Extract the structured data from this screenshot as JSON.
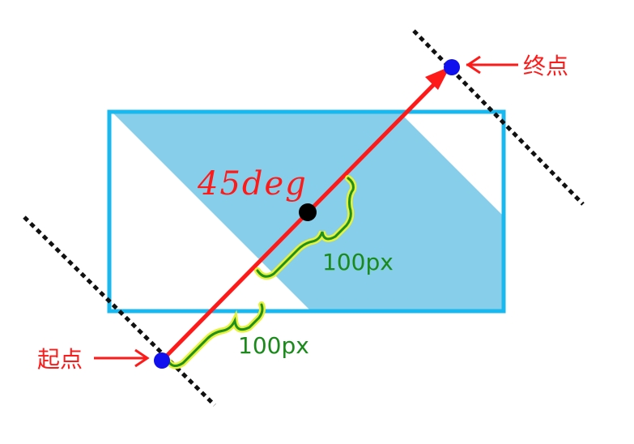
{
  "labels": {
    "start_point": "起点",
    "end_point": "终点",
    "angle": "45deg",
    "segment_lower": "100px",
    "segment_upper": "100px"
  },
  "colors": {
    "box_border": "#19b8ef",
    "stripe_fill": "#87ceeb",
    "gradient_line": "#ff1a1a",
    "guide_dash": "#111111",
    "endpoint_dot": "#1010ee",
    "center_dot": "#000000",
    "brace_fill": "#1f8f1f",
    "brace_glow": "#e8f23a",
    "label_red": "#ff1a1a",
    "label_green": "#1a8a1a"
  },
  "icons": {
    "start_marker": "point-dot-icon",
    "end_marker": "point-dot-icon",
    "center_marker": "center-dot-icon",
    "pointer": "arrow-left-icon"
  }
}
